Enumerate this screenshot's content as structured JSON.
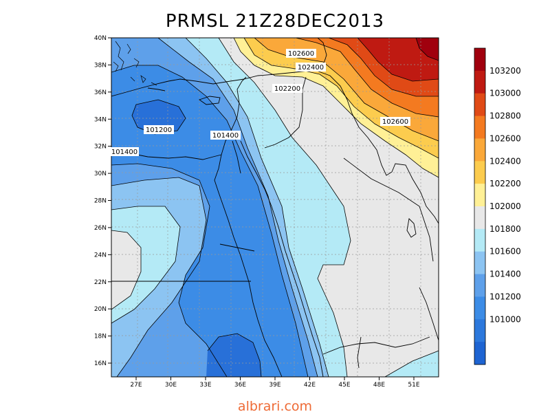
{
  "title": "PRMSL 21Z28DEC2013",
  "watermark": "albrari.com",
  "lat_ticks": [
    "40N",
    "38N",
    "36N",
    "34N",
    "32N",
    "30N",
    "28N",
    "26N",
    "24N",
    "22N",
    "20N",
    "18N",
    "16N"
  ],
  "lon_ticks": [
    "27E",
    "30E",
    "33E",
    "36E",
    "39E",
    "42E",
    "45E",
    "48E",
    "51E"
  ],
  "contour_labels": [
    "102600",
    "102400",
    "102200",
    "101200",
    "101400",
    "101400",
    "102600"
  ],
  "colorbar": {
    "colors": [
      "#1e64d2",
      "#2c78dc",
      "#3c8ce6",
      "#5ea0ea",
      "#8cc4f2",
      "#b4eaf6",
      "#e8e8e8",
      "#fff096",
      "#fccc4e",
      "#faa83a",
      "#f47a20",
      "#e04a16",
      "#bf1a12",
      "#a0000e"
    ],
    "labels": [
      "101000",
      "101200",
      "101400",
      "101600",
      "101800",
      "102000",
      "102200",
      "102400",
      "102600",
      "102800",
      "103000",
      "103200"
    ]
  },
  "palette": {
    "dark_blue": "#2870d8",
    "blue": "#3c8ce6",
    "mid_blue": "#5ea0ea",
    "light_blue": "#8cc4f2",
    "cyan": "#b4eaf6",
    "grey": "#e8e8e8",
    "yellow": "#fff096",
    "orange_light": "#fccc4e",
    "orange": "#faa83a",
    "orange_dark": "#f47a20",
    "red_orange": "#e04a16",
    "red": "#bf1a12",
    "dark_red": "#a0000e"
  }
}
